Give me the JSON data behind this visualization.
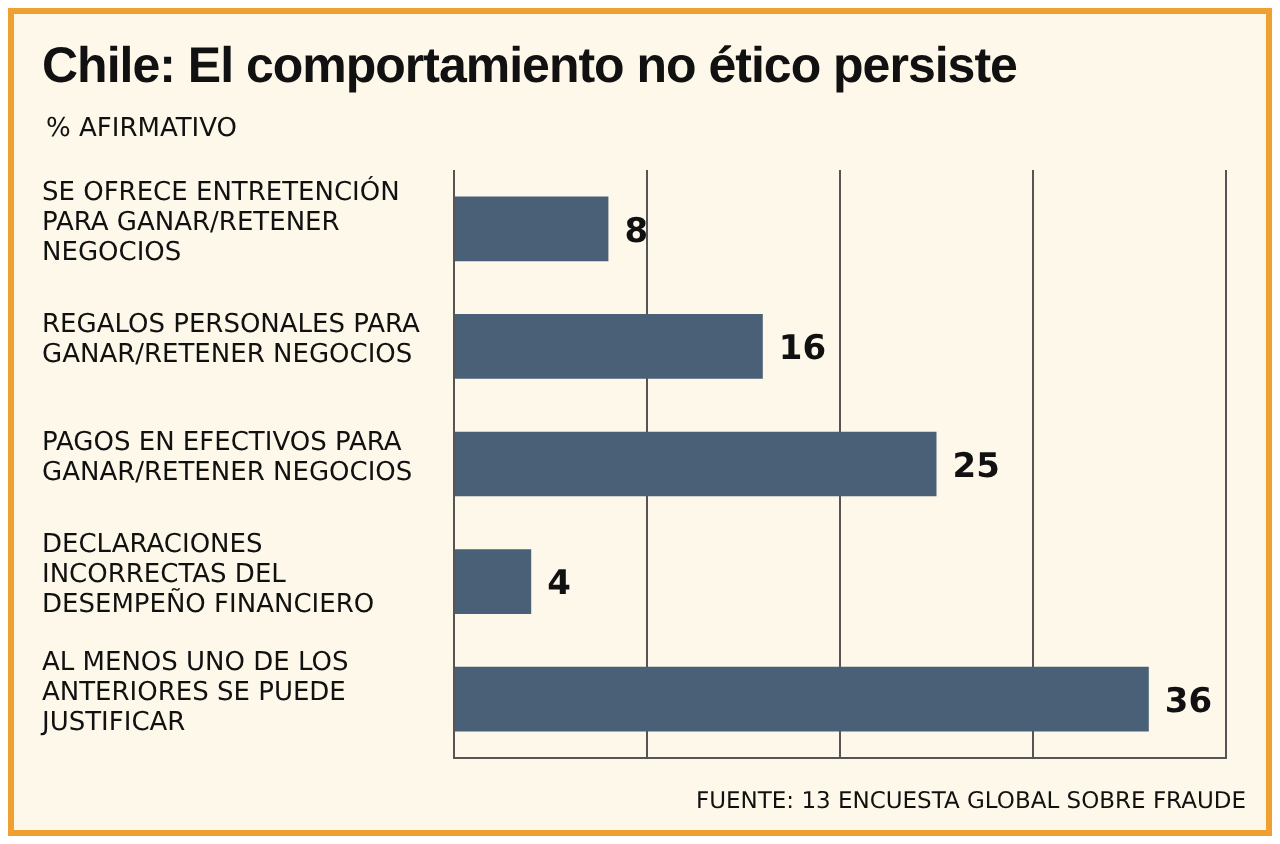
{
  "chart_data": {
    "type": "bar",
    "orientation": "horizontal",
    "title": "Chile: El comportamiento no ético persiste",
    "subtitle": "% AFIRMATIVO",
    "categories": [
      "SE OFRECE ENTRETENCIÓN PARA GANAR/RETENER NEGOCIOS",
      "REGALOS PERSONALES PARA GANAR/RETENER NEGOCIOS",
      "PAGOS EN EFECTIVOS PARA GANAR/RETENER NEGOCIOS",
      "DECLARACIONES INCORRECTAS DEL DESEMPEÑO FINANCIERO",
      "AL MENOS UNO DE LOS ANTERIORES SE PUEDE JUSTIFICAR"
    ],
    "values": [
      8,
      16,
      25,
      4,
      36
    ],
    "color": "#4a6076",
    "data_labels": true,
    "xlim": [
      0,
      40
    ],
    "xticks": [
      {
        "value": 0,
        "label": null
      },
      {
        "value": 10,
        "label": null
      },
      {
        "value": 20,
        "label": null
      },
      {
        "value": 30,
        "label": null
      },
      {
        "value": 40,
        "label": null
      }
    ],
    "grid": "x",
    "tick_labels": "y",
    "legend": false,
    "annotations": [
      "FUENTE: 13 ENCUESTA GLOBAL SOBRE FRAUDE"
    ]
  }
}
